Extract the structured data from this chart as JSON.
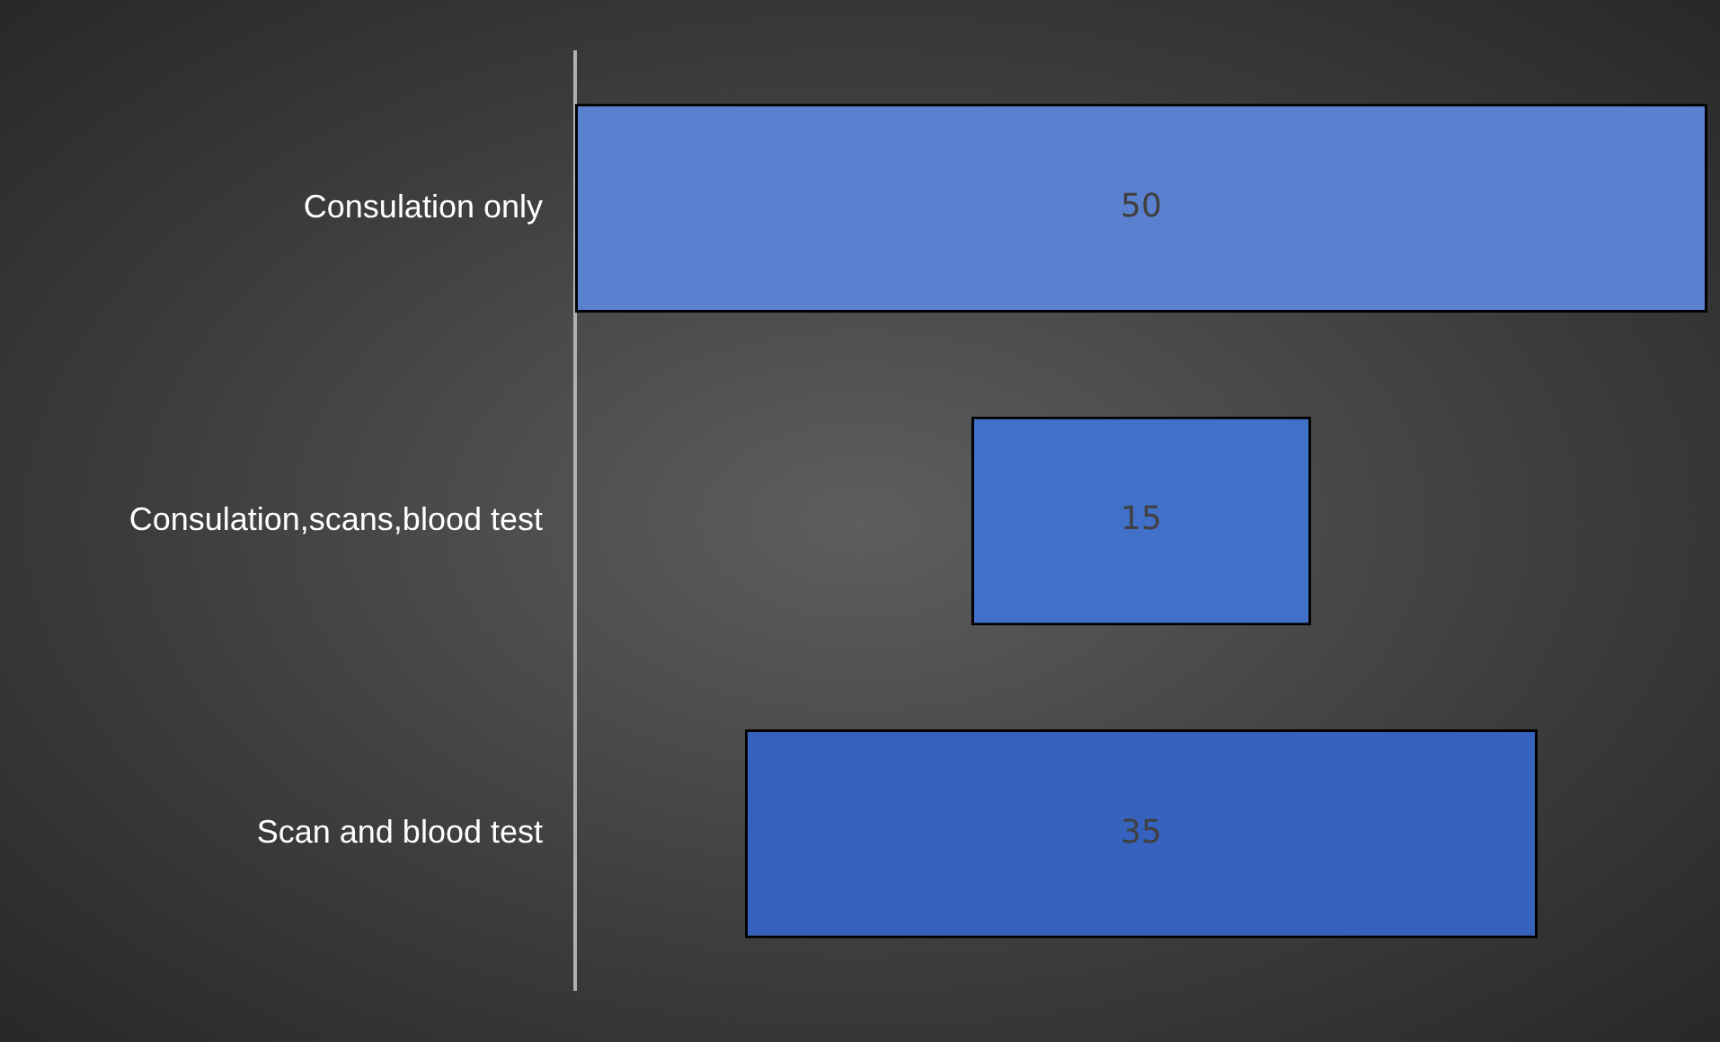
{
  "chart_data": {
    "type": "other",
    "categories": [
      "Consulation only",
      "Consulation,scans,blood test",
      "Scan and blood test"
    ],
    "values": [
      50,
      15,
      35
    ],
    "colors": [
      "#5a80d0",
      "#4170c8",
      "#3661bd"
    ],
    "data_labels": true
  }
}
